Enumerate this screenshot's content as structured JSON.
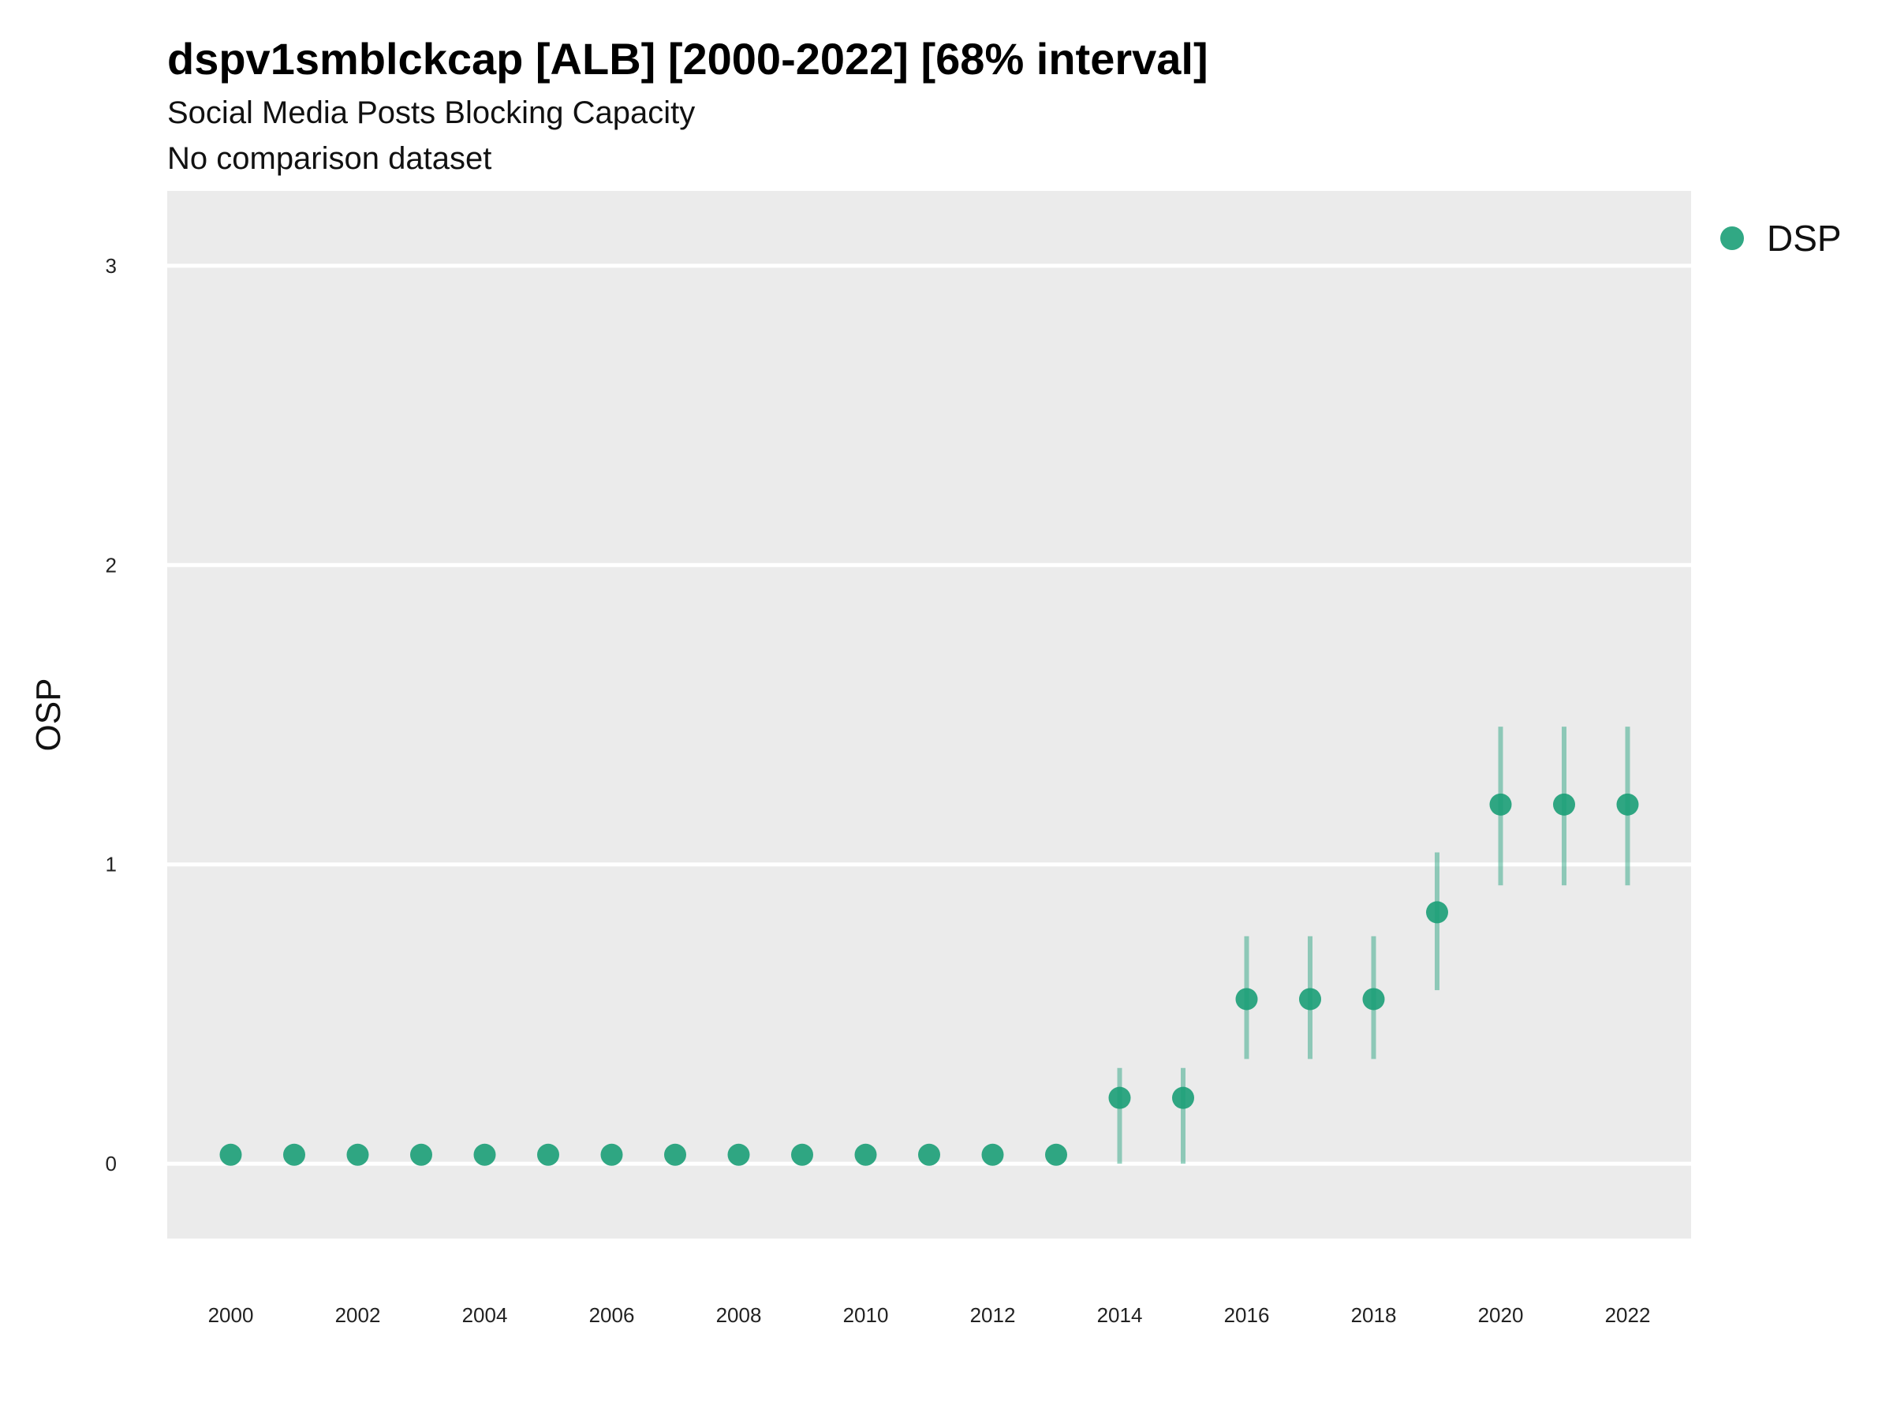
{
  "chart_data": {
    "type": "scatter",
    "title": "dspv1smblckcap [ALB] [2000-2022] [68% interval]",
    "subtitle": "Social Media Posts Blocking Capacity",
    "caption": "No comparison dataset",
    "xlabel": "",
    "ylabel": "OSP",
    "xlim": [
      1999,
      2023
    ],
    "ylim": [
      -0.25,
      3.25
    ],
    "x_ticks": [
      2000,
      2002,
      2004,
      2006,
      2008,
      2010,
      2012,
      2014,
      2016,
      2018,
      2020,
      2022
    ],
    "y_ticks": [
      0,
      1,
      2,
      3
    ],
    "grid": true,
    "legend_position": "top-right",
    "series": [
      {
        "name": "DSP",
        "color": "#1b9e77",
        "x": [
          2000,
          2001,
          2002,
          2003,
          2004,
          2005,
          2006,
          2007,
          2008,
          2009,
          2010,
          2011,
          2012,
          2013,
          2014,
          2015,
          2016,
          2017,
          2018,
          2019,
          2020,
          2021,
          2022
        ],
        "y": [
          0.03,
          0.03,
          0.03,
          0.03,
          0.03,
          0.03,
          0.03,
          0.03,
          0.03,
          0.03,
          0.03,
          0.03,
          0.03,
          0.03,
          0.22,
          0.22,
          0.55,
          0.55,
          0.55,
          0.84,
          1.2,
          1.2,
          1.2
        ],
        "lower": [
          null,
          null,
          null,
          null,
          null,
          null,
          null,
          null,
          null,
          null,
          null,
          null,
          null,
          null,
          0.0,
          0.0,
          0.35,
          0.35,
          0.35,
          0.58,
          0.93,
          0.93,
          0.93
        ],
        "upper": [
          null,
          null,
          null,
          null,
          null,
          null,
          null,
          null,
          null,
          null,
          null,
          null,
          null,
          null,
          0.32,
          0.32,
          0.76,
          0.76,
          0.76,
          1.04,
          1.46,
          1.46,
          1.46
        ]
      }
    ]
  }
}
